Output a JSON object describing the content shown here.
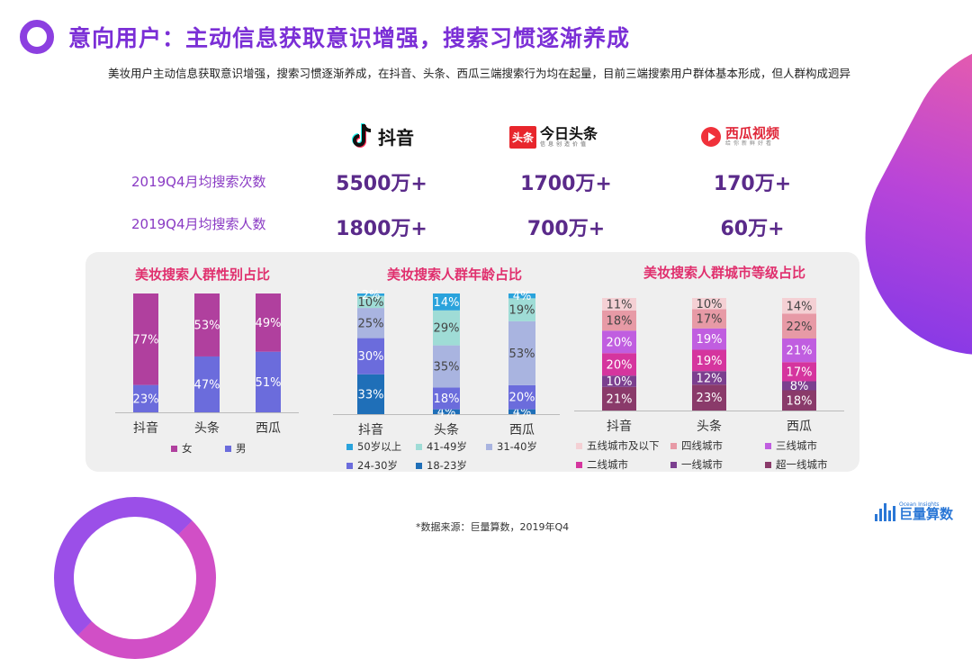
{
  "header": {
    "title": "意向用户：主动信息获取意识增强，搜索习惯逐渐养成",
    "subtitle": "美妆用户主动信息获取意识增强，搜索习惯逐渐养成，在抖音、头条、西瓜三端搜索行为均在起量，目前三端搜索用户群体基本形成，但人群构成迥异"
  },
  "platforms": {
    "douyin": {
      "name": "抖音",
      "icon": "douyin-note-icon"
    },
    "toutiao": {
      "name": "今日头条",
      "badge": "头条",
      "tagline": "信息创造价值",
      "icon": "toutiao-badge-icon"
    },
    "xigua": {
      "name": "西瓜视频",
      "tagline": "给你新鲜好看",
      "icon": "xigua-play-icon"
    }
  },
  "stats": {
    "row1_label": "2019Q4月均搜索次数",
    "row2_label": "2019Q4月均搜索人数",
    "searches": [
      "5500万+",
      "1700万+",
      "170万+"
    ],
    "users": [
      "1800万+",
      "700万+",
      "60万+"
    ]
  },
  "colors": {
    "title": "#7b2fd6",
    "accent_pink": "#e0306e",
    "female": "#b0409e",
    "male": "#6b6cdc"
  },
  "chart_data": [
    {
      "type": "bar",
      "stacked": true,
      "title": "美妆搜索人群性别占比",
      "categories": [
        "抖音",
        "头条",
        "西瓜"
      ],
      "series": [
        {
          "name": "男",
          "values": [
            23,
            47,
            51
          ],
          "color": "#6b6cdc"
        },
        {
          "name": "女",
          "values": [
            77,
            53,
            49
          ],
          "color": "#b0409e"
        }
      ],
      "legend": [
        "女",
        "男"
      ],
      "unit": "%"
    },
    {
      "type": "bar",
      "stacked": true,
      "title": "美妆搜索人群年龄占比",
      "categories": [
        "抖音",
        "头条",
        "西瓜"
      ],
      "series": [
        {
          "name": "18-23岁",
          "values": [
            33,
            4,
            4
          ],
          "color": "#1f6fb8"
        },
        {
          "name": "24-30岁",
          "values": [
            30,
            18,
            20
          ],
          "color": "#6b6cdc"
        },
        {
          "name": "31-40岁",
          "values": [
            25,
            35,
            53
          ],
          "color": "#a9b4e0"
        },
        {
          "name": "41-49岁",
          "values": [
            10,
            29,
            19
          ],
          "color": "#9fdcd6"
        },
        {
          "name": "50岁以上",
          "values": [
            2,
            14,
            4
          ],
          "color": "#2aa3dc"
        }
      ],
      "legend": [
        "50岁以上",
        "41-49岁",
        "31-40岁",
        "24-30岁",
        "18-23岁"
      ],
      "unit": "%"
    },
    {
      "type": "bar",
      "stacked": true,
      "title": "美妆搜索人群城市等级占比",
      "categories": [
        "抖音",
        "头条",
        "西瓜"
      ],
      "series": [
        {
          "name": "超一线城市",
          "values": [
            21,
            23,
            18
          ],
          "color": "#8a3a6a"
        },
        {
          "name": "一线城市",
          "values": [
            10,
            12,
            8
          ],
          "color": "#7b3f8f"
        },
        {
          "name": "二线城市",
          "values": [
            20,
            19,
            17
          ],
          "color": "#d5359e"
        },
        {
          "name": "三线城市",
          "values": [
            20,
            19,
            21
          ],
          "color": "#c05ee0"
        },
        {
          "name": "四线城市",
          "values": [
            18,
            17,
            22
          ],
          "color": "#e79aa6"
        },
        {
          "name": "五线城市及以下",
          "values": [
            11,
            10,
            14
          ],
          "color": "#f4d0d4"
        }
      ],
      "legend": [
        "五线城市及以下",
        "四线城市",
        "三线城市",
        "二线城市",
        "一线城市",
        "超一线城市"
      ],
      "unit": "%"
    }
  ],
  "footer": {
    "source": "*数据来源：巨量算数，2019年Q4",
    "brand_small": "Ocean Insights",
    "brand_big": "巨量算数"
  }
}
